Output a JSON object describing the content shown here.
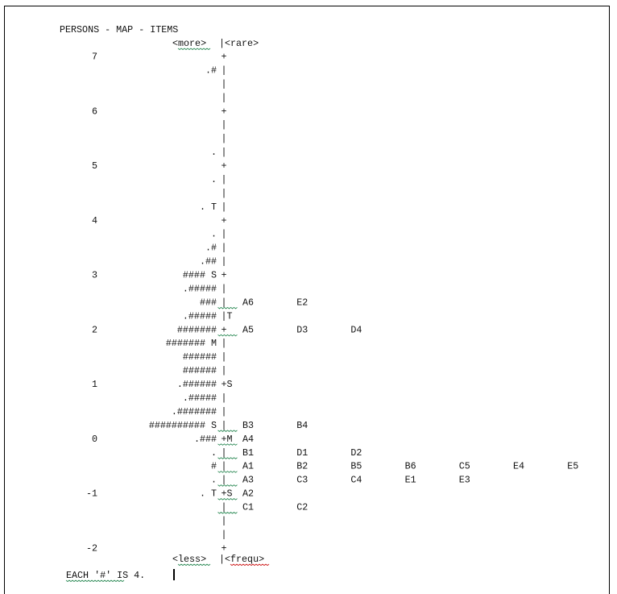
{
  "chart_data": {
    "type": "table",
    "title": "PERSONS - MAP - ITEMS",
    "header": {
      "left": "<more>",
      "sep": "|",
      "right": "<rare>"
    },
    "footer": {
      "left": "<less>",
      "sep": "|",
      "right": "<frequ>"
    },
    "note": "EACH '#' IS 4.",
    "ylim": [
      -2,
      7
    ],
    "y_ticks": [
      "7",
      "6",
      "5",
      "4",
      "3",
      "2",
      "1",
      "0",
      "-1",
      "-2"
    ],
    "rows": [
      {
        "persons": "",
        "axis": "+",
        "items": []
      },
      {
        "persons": ".#",
        "axis": "|",
        "items": []
      },
      {
        "persons": "",
        "axis": "|",
        "items": []
      },
      {
        "persons": "",
        "axis": "|",
        "items": []
      },
      {
        "persons": "",
        "axis": "+",
        "items": []
      },
      {
        "persons": "",
        "axis": "|",
        "items": []
      },
      {
        "persons": "",
        "axis": "|",
        "items": []
      },
      {
        "persons": ".",
        "axis": "|",
        "items": []
      },
      {
        "persons": "",
        "axis": "+",
        "items": []
      },
      {
        "persons": ".",
        "axis": "|",
        "items": []
      },
      {
        "persons": "",
        "axis": "|",
        "items": []
      },
      {
        "persons": ". T",
        "axis": "|",
        "items": []
      },
      {
        "persons": "",
        "axis": "+",
        "items": []
      },
      {
        "persons": ".",
        "axis": "|",
        "items": []
      },
      {
        "persons": ".#",
        "axis": "|",
        "items": []
      },
      {
        "persons": ".##",
        "axis": "|",
        "items": []
      },
      {
        "persons": "#### S",
        "axis": "+",
        "items": []
      },
      {
        "persons": ".#####",
        "axis": "|",
        "items": []
      },
      {
        "persons": "###",
        "axis": "|",
        "items": [
          "A6",
          "E2"
        ]
      },
      {
        "persons": ".#####",
        "axis": "|T",
        "items": []
      },
      {
        "persons": "#######",
        "axis": "+",
        "items": [
          "A5",
          "D3",
          "D4"
        ]
      },
      {
        "persons": "####### M",
        "axis": "|",
        "items": []
      },
      {
        "persons": "######",
        "axis": "|",
        "items": []
      },
      {
        "persons": "######",
        "axis": "|",
        "items": []
      },
      {
        "persons": ".######",
        "axis": "+S",
        "items": []
      },
      {
        "persons": ".#####",
        "axis": "|",
        "items": []
      },
      {
        "persons": ".#######",
        "axis": "|",
        "items": []
      },
      {
        "persons": "########## S",
        "axis": "|",
        "items": [
          "B3",
          "B4"
        ]
      },
      {
        "persons": ".###",
        "axis": "+M",
        "items": [
          "A4"
        ]
      },
      {
        "persons": ".",
        "axis": "|",
        "items": [
          "B1",
          "D1",
          "D2"
        ]
      },
      {
        "persons": "#",
        "axis": "|",
        "items": [
          "A1",
          "B2",
          "B5",
          "B6",
          "C5",
          "E4",
          "E5"
        ]
      },
      {
        "persons": ".",
        "axis": "|",
        "items": [
          "A3",
          "C3",
          "C4",
          "E1",
          "E3"
        ]
      },
      {
        "persons": ". T",
        "axis": "+S",
        "items": [
          "A2"
        ]
      },
      {
        "persons": "",
        "axis": "|",
        "items": [
          "C1",
          "C2"
        ]
      },
      {
        "persons": "",
        "axis": "|",
        "items": []
      },
      {
        "persons": "",
        "axis": "|",
        "items": []
      },
      {
        "persons": "",
        "axis": "+",
        "items": []
      }
    ]
  }
}
